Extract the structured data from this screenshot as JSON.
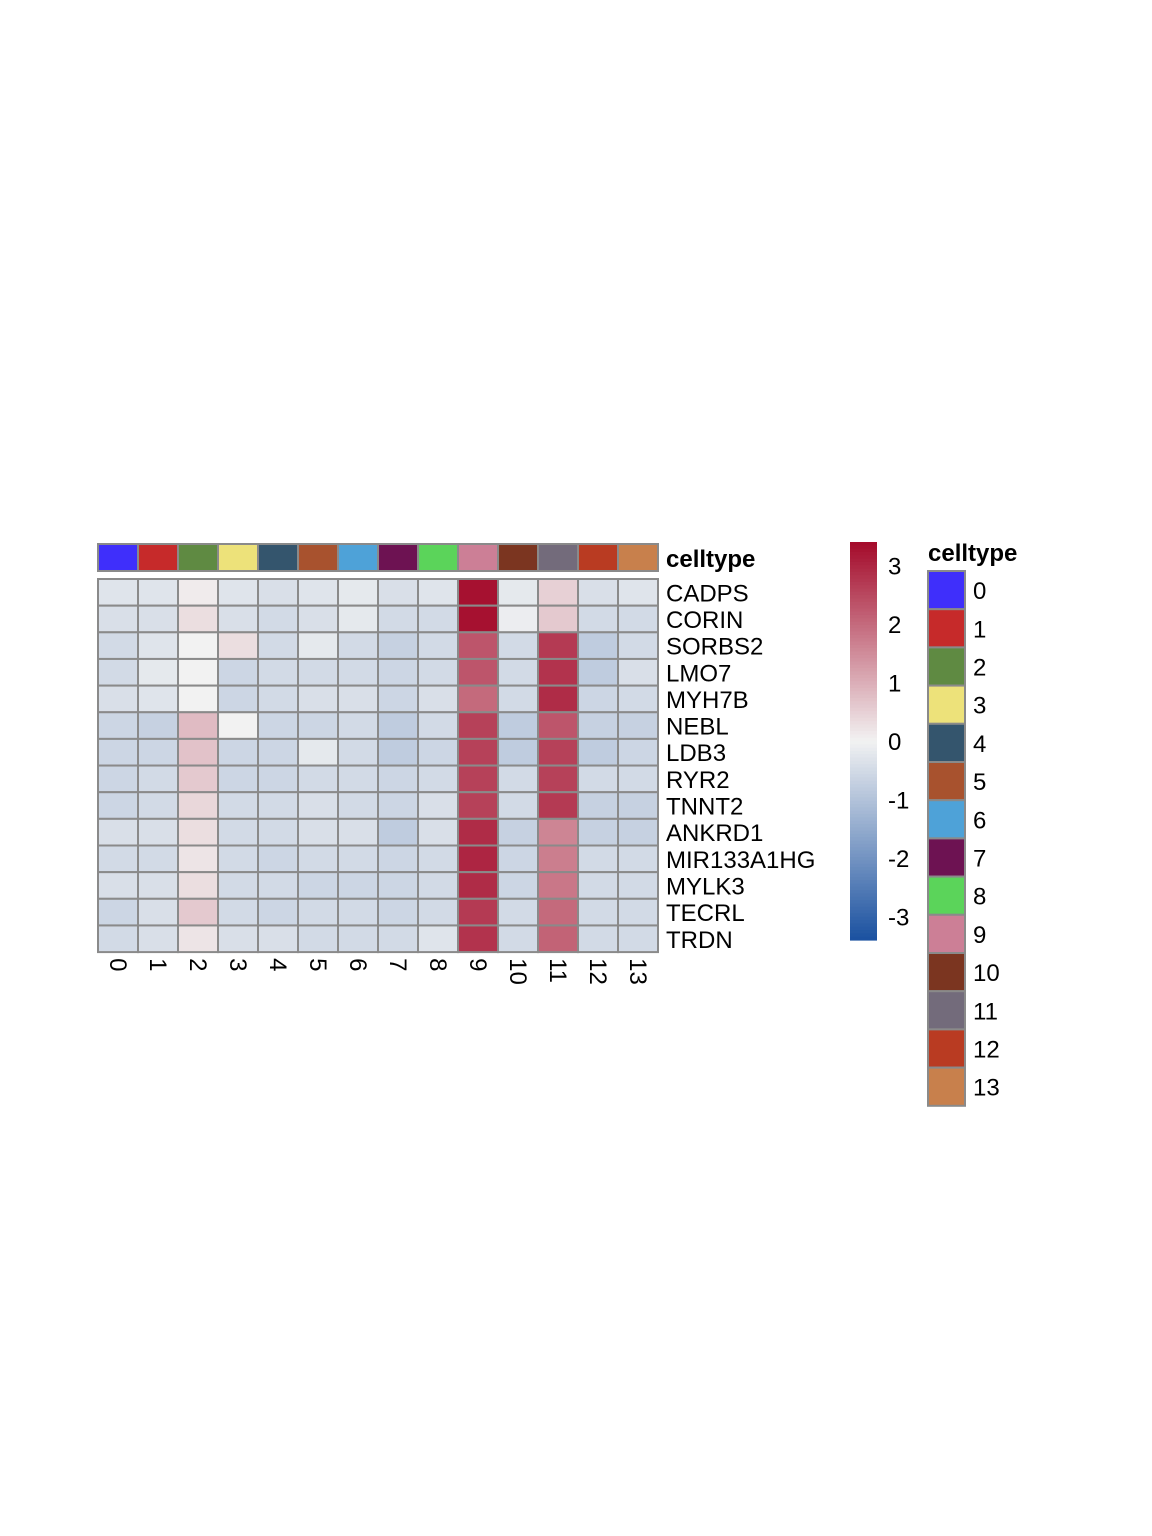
{
  "chart_data": {
    "type": "heatmap",
    "annotation_title": "celltype",
    "legend_title": "celltype",
    "columns": [
      "0",
      "1",
      "2",
      "3",
      "4",
      "5",
      "6",
      "7",
      "8",
      "9",
      "10",
      "11",
      "12",
      "13"
    ],
    "rows": [
      "CADPS",
      "CORIN",
      "SORBS2",
      "LMO7",
      "MYH7B",
      "NEBL",
      "LDB3",
      "RYR2",
      "TNNT2",
      "ANKRD1",
      "MIR133A1HG",
      "MYLK3",
      "TECRL",
      "TRDN"
    ],
    "celltype_colors": [
      "#3f2ffb",
      "#c62a2a",
      "#5f8a42",
      "#ede27a",
      "#34556d",
      "#a8522e",
      "#4ea2d8",
      "#6d1252",
      "#5bd45a",
      "#cc7f96",
      "#7b3520",
      "#736b7b",
      "#b93b22",
      "#c8804c"
    ],
    "colorbar": {
      "min": -3.4,
      "max": 3.4,
      "ticks": [
        3,
        2,
        1,
        0,
        -1,
        -2,
        -3
      ],
      "low_color": "#1a51a0",
      "mid_color": "#f2f2f2",
      "high_color": "#a40a2a"
    },
    "values": [
      [
        -0.3,
        -0.3,
        0.1,
        -0.3,
        -0.4,
        -0.3,
        -0.2,
        -0.4,
        -0.3,
        3.3,
        -0.2,
        0.5,
        -0.4,
        -0.3
      ],
      [
        -0.4,
        -0.4,
        0.3,
        -0.4,
        -0.5,
        -0.4,
        -0.2,
        -0.5,
        -0.5,
        3.3,
        -0.1,
        0.6,
        -0.5,
        -0.5
      ],
      [
        -0.5,
        -0.3,
        0.0,
        0.3,
        -0.5,
        -0.2,
        -0.5,
        -0.7,
        -0.5,
        2.3,
        -0.5,
        2.7,
        -0.8,
        -0.5
      ],
      [
        -0.5,
        -0.2,
        0.0,
        -0.6,
        -0.5,
        -0.5,
        -0.5,
        -0.6,
        -0.5,
        2.3,
        -0.5,
        2.8,
        -0.8,
        -0.4
      ],
      [
        -0.4,
        -0.3,
        0.0,
        -0.6,
        -0.5,
        -0.4,
        -0.4,
        -0.6,
        -0.4,
        2.0,
        -0.5,
        2.9,
        -0.6,
        -0.5
      ],
      [
        -0.6,
        -0.7,
        0.8,
        0.0,
        -0.6,
        -0.6,
        -0.5,
        -0.8,
        -0.5,
        2.6,
        -0.8,
        2.3,
        -0.7,
        -0.7
      ],
      [
        -0.6,
        -0.6,
        0.7,
        -0.6,
        -0.6,
        -0.2,
        -0.5,
        -0.8,
        -0.6,
        2.6,
        -0.8,
        2.6,
        -0.8,
        -0.6
      ],
      [
        -0.6,
        -0.5,
        0.6,
        -0.6,
        -0.6,
        -0.5,
        -0.5,
        -0.6,
        -0.5,
        2.6,
        -0.5,
        2.6,
        -0.5,
        -0.5
      ],
      [
        -0.6,
        -0.5,
        0.4,
        -0.5,
        -0.5,
        -0.4,
        -0.5,
        -0.6,
        -0.4,
        2.6,
        -0.5,
        2.7,
        -0.7,
        -0.7
      ],
      [
        -0.4,
        -0.4,
        0.3,
        -0.5,
        -0.5,
        -0.4,
        -0.4,
        -0.8,
        -0.4,
        2.9,
        -0.7,
        1.6,
        -0.7,
        -0.7
      ],
      [
        -0.5,
        -0.5,
        0.2,
        -0.5,
        -0.6,
        -0.5,
        -0.5,
        -0.6,
        -0.5,
        3.0,
        -0.6,
        1.7,
        -0.5,
        -0.5
      ],
      [
        -0.4,
        -0.4,
        0.3,
        -0.5,
        -0.5,
        -0.6,
        -0.6,
        -0.6,
        -0.5,
        2.9,
        -0.6,
        1.8,
        -0.5,
        -0.5
      ],
      [
        -0.6,
        -0.4,
        0.6,
        -0.5,
        -0.6,
        -0.5,
        -0.5,
        -0.6,
        -0.5,
        2.7,
        -0.5,
        2.0,
        -0.5,
        -0.5
      ],
      [
        -0.5,
        -0.4,
        0.2,
        -0.4,
        -0.4,
        -0.5,
        -0.5,
        -0.5,
        -0.3,
        2.8,
        -0.5,
        2.1,
        -0.5,
        -0.5
      ]
    ]
  }
}
